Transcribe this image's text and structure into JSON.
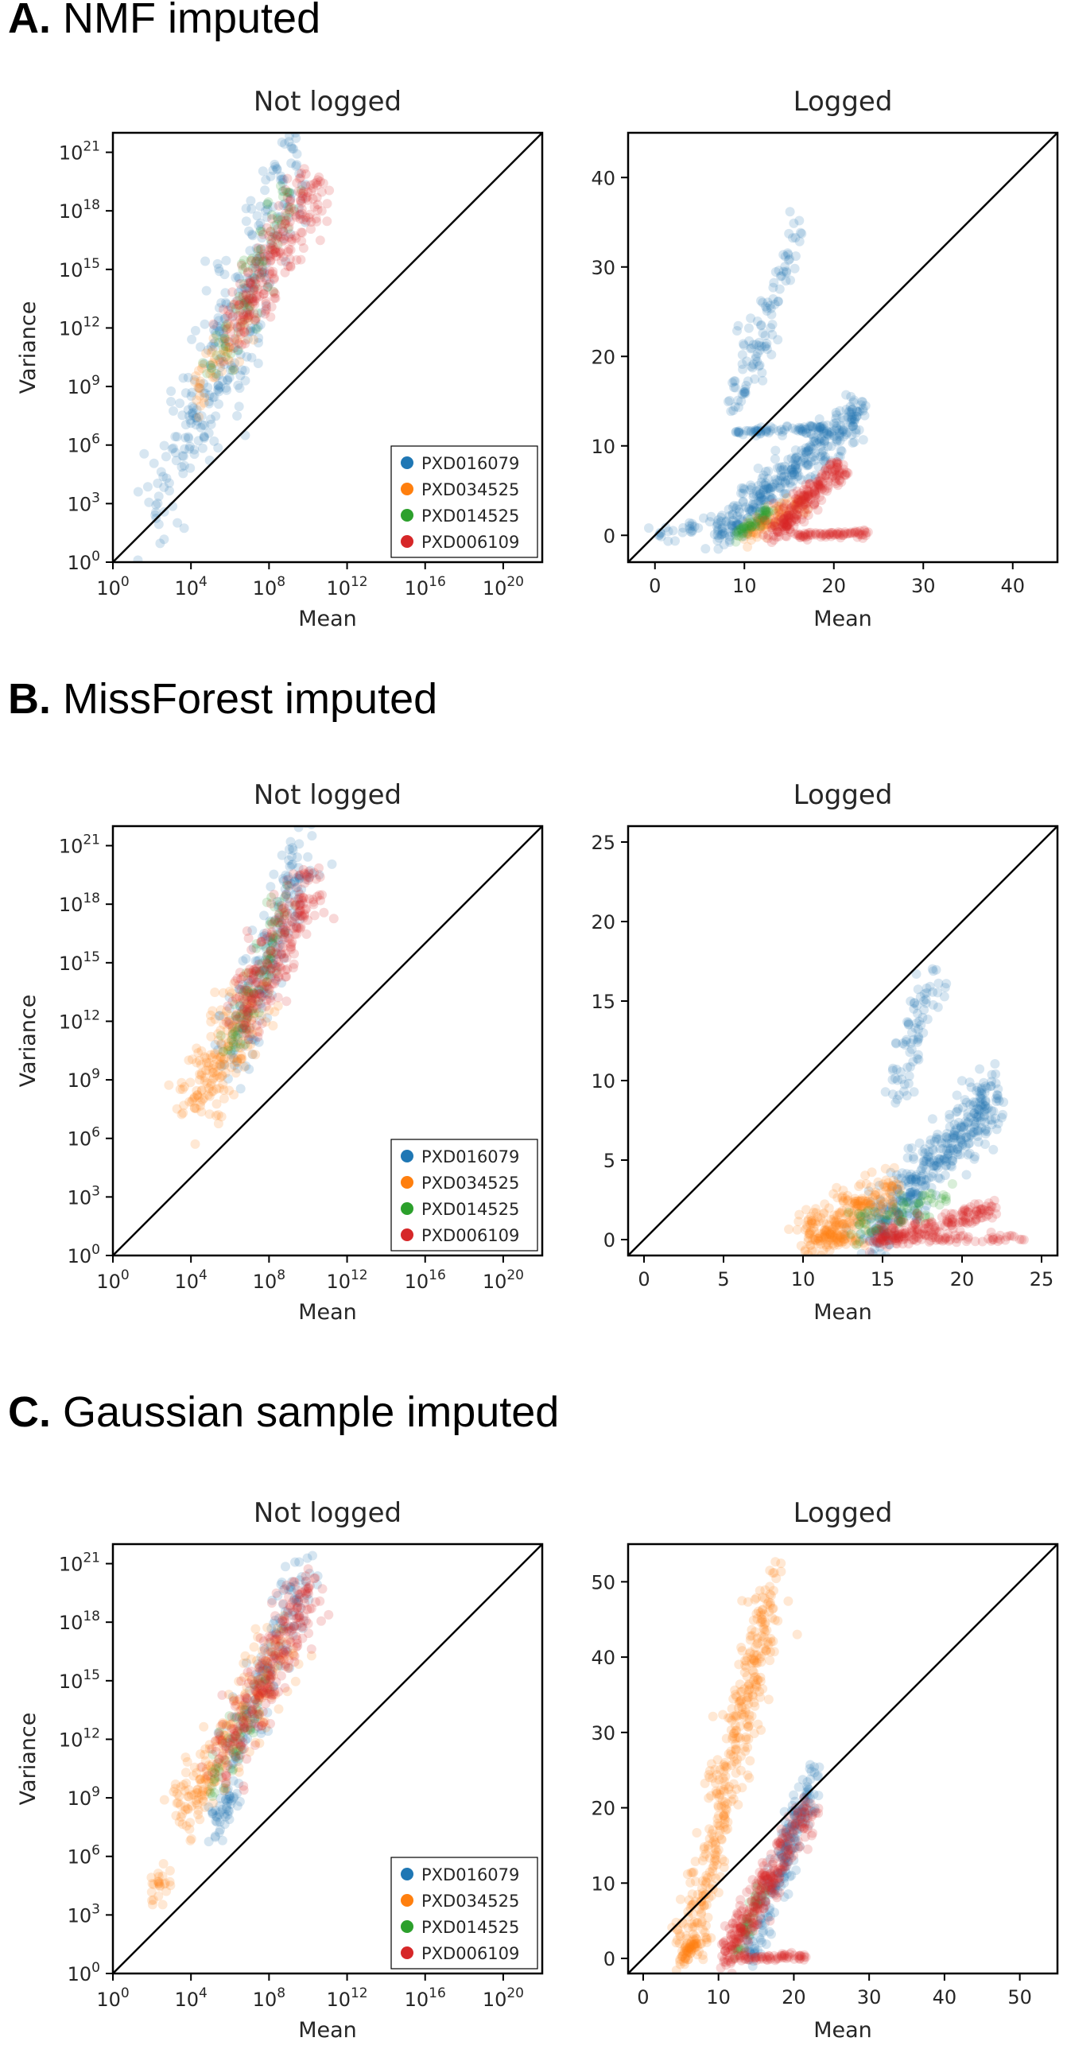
{
  "sections": [
    {
      "letter": "A.",
      "title": "NMF imputed"
    },
    {
      "letter": "B.",
      "title": "MissForest imputed"
    },
    {
      "letter": "C.",
      "title": "Gaussian sample imputed"
    }
  ],
  "colors": {
    "PXD016079": "#1f77b4",
    "PXD034525": "#ff7f0e",
    "PXD014525": "#2ca02c",
    "PXD006109": "#d62728"
  },
  "legend": [
    "PXD016079",
    "PXD034525",
    "PXD014525",
    "PXD006109"
  ],
  "chart_data": [
    {
      "type": "scatter",
      "section": "A",
      "title": "Not logged",
      "xlabel": "Mean",
      "ylabel": "Variance",
      "scale": "log10",
      "xlim": [
        0,
        22
      ],
      "ylim": [
        0,
        22
      ],
      "xticks": [
        0,
        4,
        8,
        12,
        16,
        20
      ],
      "yticks": [
        0,
        3,
        6,
        9,
        12,
        15,
        18,
        21
      ],
      "tick_base": "10",
      "diagonal": "y = x",
      "legend": "lower right",
      "series": [
        {
          "name": "PXD016079",
          "clouds": [
            {
              "x": [
                2,
                9.5
              ],
              "y": [
                2.5,
                21
              ],
              "spread": 1.0,
              "n": 240
            },
            {
              "x": [
                4.5,
                7.5
              ],
              "y": [
                6.5,
                13
              ],
              "spread": 0.9,
              "n": 70
            }
          ]
        },
        {
          "name": "PXD034525",
          "clouds": [
            {
              "x": [
                4.2,
                6.8
              ],
              "y": [
                8.4,
                12.5
              ],
              "spread": 0.6,
              "n": 60
            }
          ]
        },
        {
          "name": "PXD014525",
          "clouds": [
            {
              "x": [
                5.2,
                9
              ],
              "y": [
                9.5,
                19
              ],
              "spread": 0.6,
              "n": 80
            }
          ]
        },
        {
          "name": "PXD006109",
          "clouds": [
            {
              "x": [
                6,
                10.2
              ],
              "y": [
                11.5,
                19.3
              ],
              "spread": 0.8,
              "n": 240
            }
          ]
        }
      ]
    },
    {
      "type": "scatter",
      "section": "A",
      "title": "Logged",
      "xlabel": "Mean",
      "xlim": [
        -3,
        45
      ],
      "ylim": [
        -3,
        45
      ],
      "xticks": [
        0,
        10,
        20,
        30,
        40
      ],
      "yticks": [
        0,
        10,
        20,
        30,
        40
      ],
      "diagonal": "y = x",
      "series": [
        {
          "name": "PXD016079",
          "clouds": [
            {
              "x": [
                7,
                23
              ],
              "y": [
                0,
                14
              ],
              "spread": 1.2,
              "n": 350
            },
            {
              "x": [
                9,
                16
              ],
              "y": [
                14,
                34
              ],
              "spread": 1.3,
              "n": 110
            },
            {
              "x": [
                9,
                19
              ],
              "y": [
                11.5,
                12
              ],
              "spread": 0.2,
              "n": 70
            },
            {
              "x": [
                0,
                12
              ],
              "y": [
                0,
                2
              ],
              "spread": 0.5,
              "n": 40
            }
          ]
        },
        {
          "name": "PXD034525",
          "clouds": [
            {
              "x": [
                10,
                17
              ],
              "y": [
                0,
                4
              ],
              "spread": 0.6,
              "n": 90
            }
          ]
        },
        {
          "name": "PXD014525",
          "clouds": [
            {
              "x": [
                9,
                13
              ],
              "y": [
                0,
                3
              ],
              "spread": 0.4,
              "n": 50
            }
          ]
        },
        {
          "name": "PXD006109",
          "clouds": [
            {
              "x": [
                13,
                21
              ],
              "y": [
                0,
                8
              ],
              "spread": 0.8,
              "n": 230
            },
            {
              "x": [
                16,
                24
              ],
              "y": [
                0,
                0.2
              ],
              "spread": 0.2,
              "n": 70
            }
          ]
        }
      ]
    },
    {
      "type": "scatter",
      "section": "B",
      "title": "Not logged",
      "xlabel": "Mean",
      "ylabel": "Variance",
      "scale": "log10",
      "xlim": [
        0,
        22
      ],
      "ylim": [
        0,
        22
      ],
      "xticks": [
        0,
        4,
        8,
        12,
        16,
        20
      ],
      "yticks": [
        0,
        3,
        6,
        9,
        12,
        15,
        18,
        21
      ],
      "tick_base": "10",
      "diagonal": "y = x",
      "legend": "lower right",
      "series": [
        {
          "name": "PXD016079",
          "clouds": [
            {
              "x": [
                6,
                9.8
              ],
              "y": [
                9.5,
                21
              ],
              "spread": 0.8,
              "n": 200
            }
          ]
        },
        {
          "name": "PXD034525",
          "clouds": [
            {
              "x": [
                4,
                7.5
              ],
              "y": [
                7.5,
                13.5
              ],
              "spread": 0.9,
              "n": 200
            }
          ]
        },
        {
          "name": "PXD014525",
          "clouds": [
            {
              "x": [
                6,
                9
              ],
              "y": [
                10.5,
                18.5
              ],
              "spread": 0.5,
              "n": 80
            }
          ]
        },
        {
          "name": "PXD006109",
          "clouds": [
            {
              "x": [
                6.5,
                10.2
              ],
              "y": [
                12,
                19.3
              ],
              "spread": 0.8,
              "n": 240
            }
          ]
        }
      ]
    },
    {
      "type": "scatter",
      "section": "B",
      "title": "Logged",
      "xlabel": "Mean",
      "xlim": [
        -1,
        26
      ],
      "ylim": [
        -1,
        26
      ],
      "xticks": [
        0,
        5,
        10,
        15,
        20,
        25
      ],
      "yticks": [
        0,
        5,
        10,
        15,
        20,
        25
      ],
      "diagonal": "y = x",
      "series": [
        {
          "name": "PXD016079",
          "clouds": [
            {
              "x": [
                14,
                22
              ],
              "y": [
                0,
                9
              ],
              "spread": 0.9,
              "n": 420
            },
            {
              "x": [
                15.5,
                18.5
              ],
              "y": [
                9,
                17
              ],
              "spread": 0.7,
              "n": 80
            }
          ]
        },
        {
          "name": "PXD034525",
          "clouds": [
            {
              "x": [
                10,
                16
              ],
              "y": [
                0,
                3.5
              ],
              "spread": 0.7,
              "n": 220
            },
            {
              "x": [
                10.5,
                14
              ],
              "y": [
                0,
                0.1
              ],
              "spread": 0.2,
              "n": 60
            }
          ]
        },
        {
          "name": "PXD014525",
          "clouds": [
            {
              "x": [
                13,
                19.5
              ],
              "y": [
                0.5,
                3
              ],
              "spread": 0.5,
              "n": 70
            }
          ]
        },
        {
          "name": "PXD006109",
          "clouds": [
            {
              "x": [
                14.5,
                22
              ],
              "y": [
                0,
                1.8
              ],
              "spread": 0.4,
              "n": 180
            },
            {
              "x": [
                14,
                24
              ],
              "y": [
                0,
                0.1
              ],
              "spread": 0.15,
              "n": 70
            }
          ]
        }
      ]
    },
    {
      "type": "scatter",
      "section": "C",
      "title": "Not logged",
      "xlabel": "Mean",
      "ylabel": "Variance",
      "scale": "log10",
      "xlim": [
        0,
        22
      ],
      "ylim": [
        0,
        22
      ],
      "xticks": [
        0,
        4,
        8,
        12,
        16,
        20
      ],
      "yticks": [
        0,
        3,
        6,
        9,
        12,
        15,
        18,
        21
      ],
      "tick_base": "10",
      "diagonal": "y = x",
      "legend": "lower right",
      "series": [
        {
          "name": "PXD016079",
          "clouds": [
            {
              "x": [
                5,
                6.3
              ],
              "y": [
                7,
                9.5
              ],
              "spread": 0.5,
              "n": 50
            },
            {
              "x": [
                6,
                10
              ],
              "y": [
                11,
                21
              ],
              "spread": 0.7,
              "n": 150
            }
          ]
        },
        {
          "name": "PXD034525",
          "clouds": [
            {
              "x": [
                3.5,
                9
              ],
              "y": [
                8,
                17
              ],
              "spread": 0.9,
              "n": 230
            },
            {
              "x": [
                2,
                2.8
              ],
              "y": [
                4,
                5
              ],
              "spread": 0.3,
              "n": 25
            }
          ]
        },
        {
          "name": "PXD014525",
          "clouds": [
            {
              "x": [
                5,
                8
              ],
              "y": [
                9.5,
                15
              ],
              "spread": 0.5,
              "n": 50
            }
          ]
        },
        {
          "name": "PXD006109",
          "clouds": [
            {
              "x": [
                5.5,
                10.2
              ],
              "y": [
                10.5,
                20
              ],
              "spread": 0.8,
              "n": 260
            }
          ]
        }
      ]
    },
    {
      "type": "scatter",
      "section": "C",
      "title": "Logged",
      "xlabel": "Mean",
      "xlim": [
        -2,
        55
      ],
      "ylim": [
        -2,
        55
      ],
      "xticks": [
        0,
        10,
        20,
        30,
        40,
        50
      ],
      "yticks": [
        0,
        10,
        20,
        30,
        40,
        50
      ],
      "diagonal": "y = x",
      "series": [
        {
          "name": "PXD016079",
          "clouds": [
            {
              "x": [
                14,
                23
              ],
              "y": [
                0,
                25
              ],
              "spread": 1.3,
              "n": 220
            }
          ]
        },
        {
          "name": "PXD034525",
          "clouds": [
            {
              "x": [
                6,
                17
              ],
              "y": [
                0,
                50
              ],
              "spread": 1.8,
              "n": 420
            },
            {
              "x": [
                5,
                7
              ],
              "y": [
                0,
                2
              ],
              "spread": 0.4,
              "n": 40
            }
          ]
        },
        {
          "name": "PXD014525",
          "clouds": [
            {
              "x": [
                12,
                16
              ],
              "y": [
                0,
                10
              ],
              "spread": 0.7,
              "n": 40
            }
          ]
        },
        {
          "name": "PXD006109",
          "clouds": [
            {
              "x": [
                11,
                22
              ],
              "y": [
                0,
                20
              ],
              "spread": 1.3,
              "n": 300
            },
            {
              "x": [
                12,
                22
              ],
              "y": [
                0,
                0.2
              ],
              "spread": 0.2,
              "n": 60
            }
          ]
        }
      ]
    }
  ]
}
